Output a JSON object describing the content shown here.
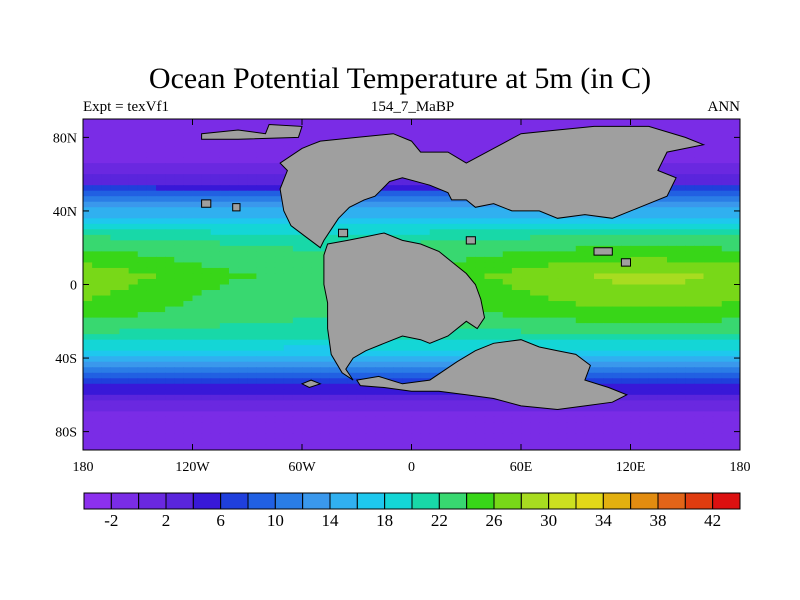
{
  "chart_data": {
    "type": "heatmap",
    "title": "Ocean Potential Temperature at 5m (in C)",
    "subtitle_left": "Expt = texVf1",
    "subtitle_center": "154_7_MaBP",
    "subtitle_right": "ANN",
    "xlabel": "",
    "ylabel": "",
    "x_ticks": [
      {
        "value": -180,
        "label": "180"
      },
      {
        "value": -120,
        "label": "120W"
      },
      {
        "value": -60,
        "label": "60W"
      },
      {
        "value": 0,
        "label": "0"
      },
      {
        "value": 60,
        "label": "60E"
      },
      {
        "value": 120,
        "label": "120E"
      },
      {
        "value": 180,
        "label": "180"
      }
    ],
    "y_ticks": [
      {
        "value": 80,
        "label": "80N"
      },
      {
        "value": 40,
        "label": "40N"
      },
      {
        "value": 0,
        "label": "0"
      },
      {
        "value": -40,
        "label": "40S"
      },
      {
        "value": -80,
        "label": "80S"
      }
    ],
    "xlim": [
      -180,
      180
    ],
    "ylim": [
      -90,
      90
    ],
    "land_color": "#9f9f9f",
    "zonal_profile": {
      "lat": [
        -90,
        -75,
        -65,
        -55,
        -45,
        -35,
        -25,
        -15,
        -5,
        5,
        15,
        25,
        35,
        45,
        55,
        65,
        75,
        90
      ],
      "temp": [
        -2,
        -1,
        1,
        6,
        13,
        18,
        22,
        24,
        25,
        26,
        24,
        22,
        17,
        12,
        4,
        0,
        -1,
        -2
      ]
    },
    "colorbar": {
      "levels": [
        -4,
        -2,
        0,
        2,
        4,
        6,
        8,
        10,
        12,
        14,
        16,
        18,
        20,
        22,
        24,
        26,
        28,
        30,
        32,
        34,
        36,
        38,
        40,
        42,
        44
      ],
      "colors": [
        "#8c30ee",
        "#7a2ce6",
        "#6a28e0",
        "#5a25dc",
        "#3818d8",
        "#1f3fdc",
        "#2160e2",
        "#2a7de6",
        "#3a98ec",
        "#30b0f0",
        "#1ec8ee",
        "#14d6d6",
        "#18d8a8",
        "#38d870",
        "#38d618",
        "#78d818",
        "#a8dc20",
        "#cce020",
        "#e2d818",
        "#e2b010",
        "#e28c10",
        "#e26418",
        "#e03c10",
        "#dc1010"
      ],
      "tick_labels": [
        "-2",
        "2",
        "6",
        "10",
        "14",
        "18",
        "22",
        "26",
        "30",
        "34",
        "38",
        "42"
      ]
    }
  }
}
